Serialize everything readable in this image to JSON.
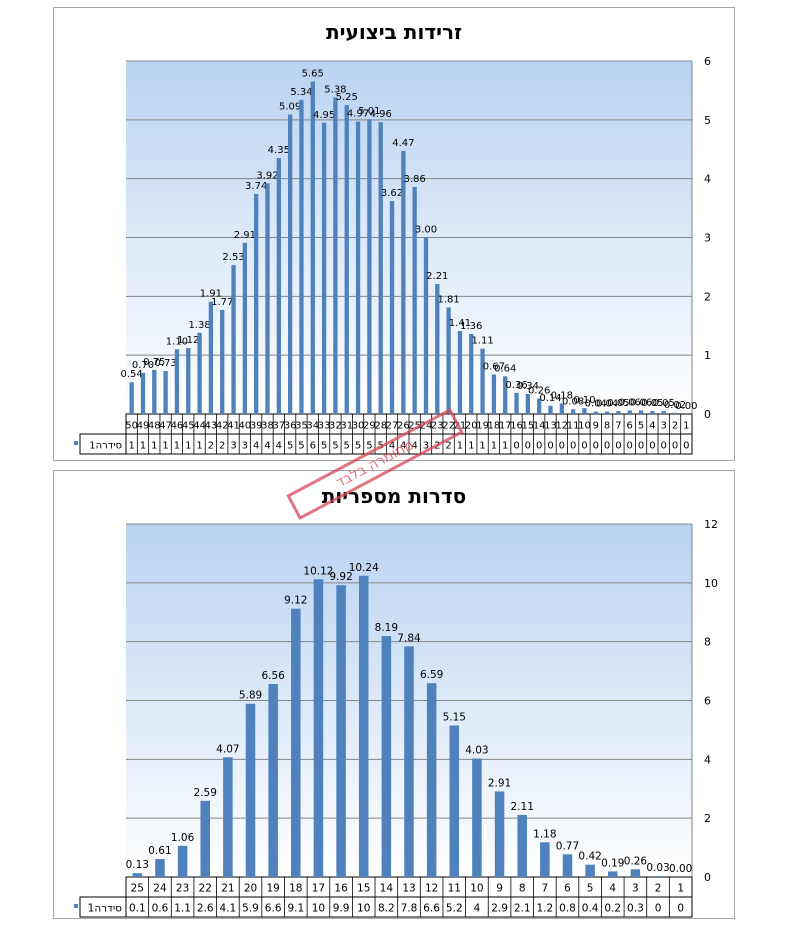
{
  "chart_data": [
    {
      "type": "bar",
      "title": "זרידות ביצועית",
      "ylim": [
        0,
        6
      ],
      "yticks": [
        0,
        1,
        2,
        3,
        4,
        5,
        6
      ],
      "grid": true,
      "axis_position": "right",
      "categories": [
        "50",
        "49",
        "48",
        "47",
        "46",
        "45",
        "44",
        "43",
        "42",
        "41",
        "40",
        "39",
        "38",
        "37",
        "36",
        "35",
        "34",
        "33",
        "32",
        "31",
        "30",
        "29",
        "28",
        "27",
        "26",
        "25",
        "24",
        "23",
        "22",
        "21",
        "20",
        "19",
        "18",
        "17",
        "16",
        "15",
        "14",
        "13",
        "12",
        "11",
        "10",
        "9",
        "8",
        "7",
        "6",
        "5",
        "4",
        "3",
        "2",
        "1"
      ],
      "series": [
        {
          "name": "סידרה1",
          "values": [
            0.54,
            0.7,
            0.75,
            0.73,
            1.1,
            1.12,
            1.38,
            1.91,
            1.77,
            2.53,
            2.91,
            3.74,
            3.92,
            4.35,
            5.09,
            5.34,
            5.65,
            4.95,
            5.38,
            5.25,
            4.97,
            5.01,
            4.96,
            3.62,
            4.47,
            3.86,
            3.0,
            2.21,
            1.81,
            1.41,
            1.36,
            1.11,
            0.67,
            0.64,
            0.36,
            0.34,
            0.26,
            0.14,
            0.18,
            0.08,
            0.1,
            0.04,
            0.04,
            0.05,
            0.06,
            0.06,
            0.05,
            0.05,
            0.02,
            0.0
          ],
          "labels": [
            "0.54",
            "0.70",
            "0.75",
            "0.73",
            "1.10",
            "1.12",
            "1.38",
            "1.91",
            "1.77",
            "2.53",
            "2.91",
            "3.74",
            "3.92",
            "4.35",
            "5.09",
            "5.34",
            "5.65",
            "4.95",
            "5.38",
            "5.25",
            "4.97",
            "5.01",
            "4.96",
            "3.62",
            "4.47",
            "3.86",
            "3.00",
            "2.21",
            "1.81",
            "1.41",
            "1.36",
            "1.11",
            "0.67",
            "0.64",
            "0.36",
            "0.34",
            "0.26",
            "0.14",
            "0.18",
            "0.08",
            "0.10",
            "0.04",
            "0.04",
            "0.05",
            "0.06",
            "0.06",
            "0.05",
            "0.05",
            "0.02",
            "0.00"
          ],
          "table_values": [
            "1",
            "1",
            "1",
            "1",
            "1",
            "1",
            "1",
            "2",
            "2",
            "3",
            "3",
            "4",
            "4",
            "4",
            "5",
            "5",
            "6",
            "5",
            "5",
            "5",
            "5",
            "5",
            "5",
            "4",
            "4",
            "4",
            "3",
            "2",
            "2",
            "1",
            "1",
            "1",
            "1",
            "1",
            "0",
            "0",
            "0",
            "0",
            "0",
            "0",
            "0",
            "0",
            "0",
            "0",
            "0",
            "0",
            "0",
            "0",
            "0",
            "0"
          ]
        }
      ]
    },
    {
      "type": "bar",
      "title": "סדרות מספריות",
      "ylim": [
        0,
        12
      ],
      "yticks": [
        0,
        2,
        4,
        6,
        8,
        10,
        12
      ],
      "grid": true,
      "axis_position": "right",
      "categories": [
        "25",
        "24",
        "23",
        "22",
        "21",
        "20",
        "19",
        "18",
        "17",
        "16",
        "15",
        "14",
        "13",
        "12",
        "11",
        "10",
        "9",
        "8",
        "7",
        "6",
        "5",
        "4",
        "3",
        "2",
        "1"
      ],
      "series": [
        {
          "name": "סידרה1",
          "values": [
            0.13,
            0.61,
            1.06,
            2.59,
            4.07,
            5.89,
            6.56,
            9.12,
            10.12,
            9.92,
            10.24,
            8.19,
            7.84,
            6.59,
            5.15,
            4.03,
            2.91,
            2.11,
            1.18,
            0.77,
            0.42,
            0.19,
            0.26,
            0.03,
            0.0
          ],
          "labels": [
            "0.13",
            "0.61",
            "1.06",
            "2.59",
            "4.07",
            "5.89",
            "6.56",
            "9.12",
            "10.12",
            "9.92",
            "10.24",
            "8.19",
            "7.84",
            "6.59",
            "5.15",
            "4.03",
            "2.91",
            "2.11",
            "1.18",
            "0.77",
            "0.42",
            "0.19",
            "0.26",
            "0.03",
            "0.00"
          ],
          "table_values": [
            "0.1",
            "0.6",
            "1.1",
            "2.6",
            "4.1",
            "5.9",
            "6.6",
            "9.1",
            "10",
            "9.9",
            "10",
            "8.2",
            "7.8",
            "6.6",
            "5.2",
            "4",
            "2.9",
            "2.1",
            "1.2",
            "0.8",
            "0.4",
            "0.2",
            "0.3",
            "0",
            "0"
          ]
        }
      ]
    }
  ],
  "colors": {
    "bar": "#4f81bd",
    "plot_top": "#b9d3f2",
    "plot_bottom": "#ffffff",
    "grid": "#868686",
    "stamp": "#d74655"
  },
  "stamp": {
    "text": "מחומרה בלבד"
  }
}
